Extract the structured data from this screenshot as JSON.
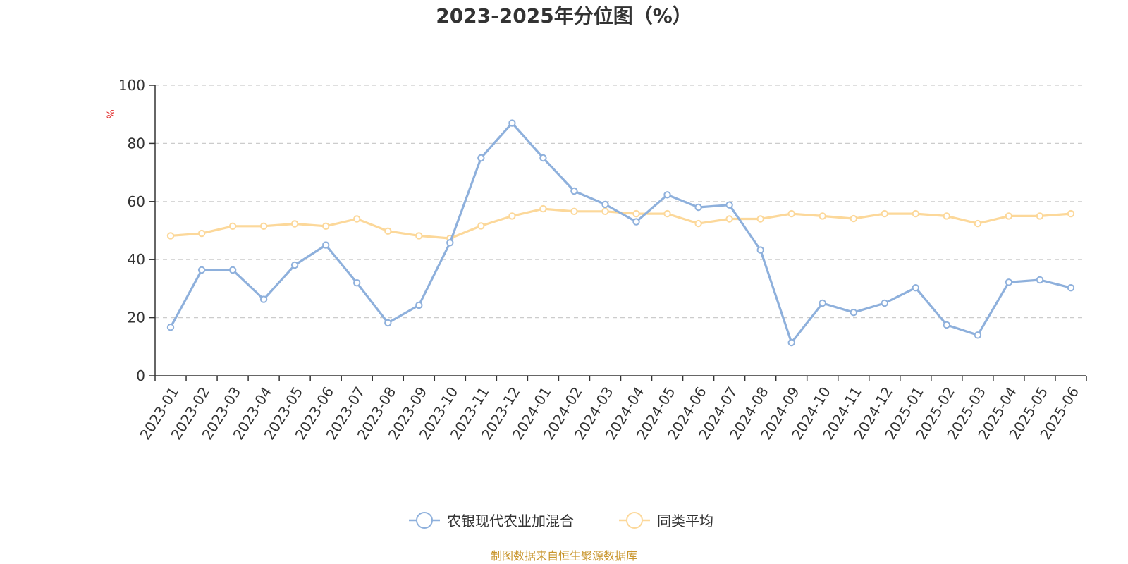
{
  "chart_data": {
    "type": "line",
    "title": "2023-2025年分位图（%）",
    "ylabel": "%",
    "xlabel": "",
    "ylim": [
      0,
      100
    ],
    "yticks": [
      0,
      20,
      40,
      60,
      80,
      100
    ],
    "grid": true,
    "legend_position": "bottom",
    "categories": [
      "2023-01",
      "2023-02",
      "2023-03",
      "2023-04",
      "2023-05",
      "2023-06",
      "2023-07",
      "2023-08",
      "2023-09",
      "2023-10",
      "2023-11",
      "2023-12",
      "2024-01",
      "2024-02",
      "2024-03",
      "2024-04",
      "2024-05",
      "2024-06",
      "2024-07",
      "2024-08",
      "2024-09",
      "2024-10",
      "2024-11",
      "2024-12",
      "2025-01",
      "2025-02",
      "2025-03",
      "2025-04",
      "2025-05",
      "2025-06"
    ],
    "series": [
      {
        "name": "农银现代农业加混合",
        "color": "#8eb0dc",
        "values": [
          16.7,
          36.4,
          36.4,
          26.3,
          38.1,
          45.0,
          32.0,
          18.2,
          24.3,
          45.8,
          75.0,
          87.0,
          75.0,
          63.6,
          59.0,
          53.0,
          62.3,
          58.0,
          58.8,
          43.3,
          11.4,
          25.0,
          21.8,
          25.0,
          30.3,
          17.5,
          14.0,
          32.2,
          33.0,
          30.3
        ]
      },
      {
        "name": "同类平均",
        "color": "#fcd89a",
        "values": [
          48.2,
          49.0,
          51.5,
          51.5,
          52.3,
          51.5,
          54.0,
          49.8,
          48.2,
          47.3,
          51.6,
          55.0,
          57.5,
          56.6,
          56.6,
          55.8,
          55.8,
          52.4,
          54.0,
          54.0,
          55.8,
          55.0,
          54.1,
          55.8,
          55.8,
          55.0,
          52.4,
          55.0,
          55.0,
          55.8
        ]
      }
    ]
  },
  "source_note": "制图数据来自恒生聚源数据库"
}
